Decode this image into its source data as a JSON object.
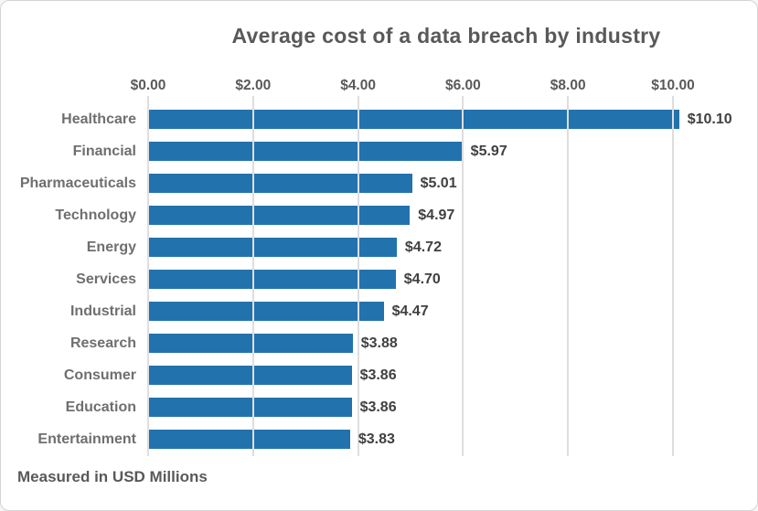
{
  "chart_data": {
    "type": "bar",
    "orientation": "horizontal",
    "title": "Average cost of a data breach by industry",
    "note": "Measured in USD Millions",
    "unit": "USD Millions",
    "categories": [
      "Healthcare",
      "Financial",
      "Pharmaceuticals",
      "Technology",
      "Energy",
      "Services",
      "Industrial",
      "Research",
      "Consumer",
      "Education",
      "Entertainment"
    ],
    "values": [
      10.1,
      5.97,
      5.01,
      4.97,
      4.72,
      4.7,
      4.47,
      3.88,
      3.86,
      3.86,
      3.83
    ],
    "value_labels": [
      "$10.10",
      "$5.97",
      "$5.01",
      "$4.97",
      "$4.72",
      "$4.70",
      "$4.47",
      "$3.88",
      "$3.86",
      "$3.86",
      "$3.83"
    ],
    "x_ticks": [
      "$0.00",
      "$2.00",
      "$4.00",
      "$6.00",
      "$8.00",
      "$10.00"
    ],
    "x_tick_values": [
      0,
      2,
      4,
      6,
      8,
      10
    ],
    "xlim": [
      0,
      11.35
    ],
    "grid": true,
    "gridlines_over_bars": true,
    "legend": false
  },
  "colors": {
    "bar": "#2272ad",
    "gridline": "#dedede",
    "title_text": "#595959",
    "axis_tick_text": "#595959",
    "category_text": "#6f6f6f",
    "value_text": "#404040",
    "note_text": "#595959",
    "background": "#ffffff",
    "border": "#d4d4d4"
  }
}
